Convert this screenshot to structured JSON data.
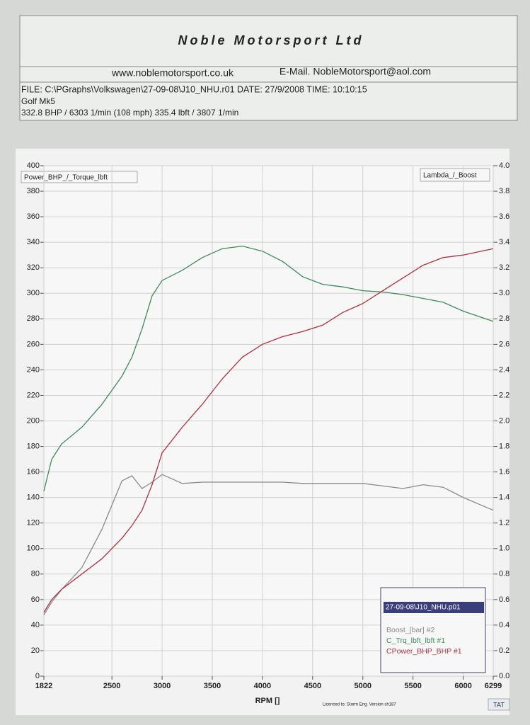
{
  "header": {
    "company": "Noble Motorsport Ltd",
    "website": "www.noblemotorsport.co.uk",
    "email": "E-Mail. NobleMotorsport@aol.com",
    "file_line": "FILE: C:\\PGraphs\\Volkswagen\\27-09-08\\J10_NHU.r01  DATE: 27/9/2008  TIME: 10:10:15",
    "car": "Golf Mk5",
    "summary": "332.8 BHP / 6303 1/min (108 mph)    335.4 lbft / 3807 1/min"
  },
  "chart_data": {
    "type": "line",
    "y_label": "Power_BHP_/_Torque_lbft",
    "y2_label": "Lambda_/_Boost",
    "x_label": "RPM []",
    "legend_title": "27-09-08\\J10_NHU.p01",
    "legend": "bottom-right",
    "grid": true,
    "footer": "Licenced to: Storm Eng.   Version sh187",
    "badge": "TAT",
    "x": [
      1822,
      1900,
      2000,
      2200,
      2400,
      2600,
      2700,
      2800,
      2900,
      3000,
      3200,
      3400,
      3600,
      3800,
      4000,
      4200,
      4400,
      4600,
      4800,
      5000,
      5200,
      5400,
      5600,
      5800,
      6000,
      6299
    ],
    "xlim": [
      1822,
      6299
    ],
    "xticks": [
      1822,
      2500,
      3000,
      3500,
      4000,
      4500,
      5000,
      5500,
      6000,
      6299
    ],
    "ylim": [
      0,
      400
    ],
    "yticks": [
      0,
      20,
      40,
      60,
      80,
      100,
      120,
      140,
      160,
      180,
      200,
      220,
      240,
      260,
      280,
      300,
      320,
      340,
      360,
      380,
      400
    ],
    "y2lim": [
      0,
      4
    ],
    "y2ticks": [
      {
        "value": 0,
        "label": "0.0"
      },
      {
        "value": 0.2,
        "label": "0.2"
      },
      {
        "value": 0.4,
        "label": "0.4"
      },
      {
        "value": 0.6,
        "label": "0.6"
      },
      {
        "value": 0.8,
        "label": "0.8"
      },
      {
        "value": 1,
        "label": "1.0"
      },
      {
        "value": 1.2,
        "label": "1.2"
      },
      {
        "value": 1.4,
        "label": "1.4"
      },
      {
        "value": 1.6,
        "label": "1.6"
      },
      {
        "value": 1.8,
        "label": "1.8"
      },
      {
        "value": 2,
        "label": "2.0"
      },
      {
        "value": 2.2,
        "label": "2.2"
      },
      {
        "value": 2.4,
        "label": "2.4"
      },
      {
        "value": 2.6,
        "label": "2.6"
      },
      {
        "value": 2.8,
        "label": "2.8"
      },
      {
        "value": 3,
        "label": "3.0"
      },
      {
        "value": 3.2,
        "label": "3.2"
      },
      {
        "value": 3.4,
        "label": "3.4"
      },
      {
        "value": 3.6,
        "label": "3.6"
      },
      {
        "value": 3.8,
        "label": "3.8"
      },
      {
        "value": 4,
        "label": "4.0"
      }
    ],
    "series": [
      {
        "name": "Boost_[bar] #2",
        "color": "#8a8a8a",
        "axis": "y2",
        "values": [
          0.48,
          0.58,
          0.68,
          0.85,
          1.15,
          1.53,
          1.57,
          1.47,
          1.52,
          1.58,
          1.51,
          1.52,
          1.52,
          1.52,
          1.52,
          1.52,
          1.51,
          1.51,
          1.51,
          1.51,
          1.49,
          1.47,
          1.5,
          1.48,
          1.4,
          1.3
        ]
      },
      {
        "name": "C_Trq_lbft_lbft #1",
        "color": "#3e8a5a",
        "values": [
          145,
          170,
          182,
          195,
          213,
          235,
          250,
          272,
          298,
          310,
          318,
          328,
          335,
          337,
          333,
          325,
          313,
          307,
          305,
          302,
          301,
          299,
          296,
          293,
          286,
          278
        ]
      },
      {
        "name": "CPower_BHP_BHP #1",
        "color": "#b03040",
        "values": [
          50,
          60,
          68,
          80,
          92,
          108,
          118,
          130,
          150,
          175,
          195,
          213,
          233,
          250,
          260,
          266,
          270,
          275,
          285,
          292,
          302,
          312,
          322,
          328,
          330,
          335
        ]
      }
    ]
  }
}
